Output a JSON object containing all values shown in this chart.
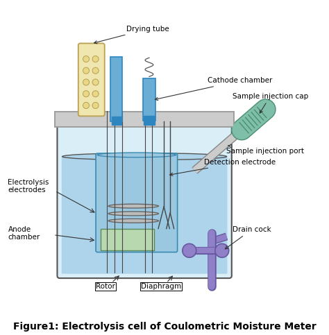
{
  "title": "Figure1: Electrolysis cell of Coulometric Moisture Meter",
  "title_fontsize": 10,
  "bg_color": "#ffffff",
  "labels": {
    "drying_tube": "Drying tube",
    "cathode_chamber": "Cathode chamber",
    "sample_injection_cap": "Sample injection cap",
    "sample_injection_port": "Sample injection port",
    "detection_electrode": "Detection electrode",
    "drain_cock": "Drain cock",
    "electrolysis_electrodes": "Electrolysis\nelectrodes",
    "anode_chamber": "Anode\nchamber",
    "rotor": "Rotor",
    "diaphragm": "Diaphragm"
  },
  "colors": {
    "vessel_outline": "#555555",
    "vessel_fill": "#daeef8",
    "liquid_fill": "#aed4eb",
    "cathode_tube_fill": "#6aaed6",
    "cathode_tube_dark": "#2e86c1",
    "drying_tube_fill": "#f0e6b0",
    "drying_tube_outline": "#b8a050",
    "lid_fill": "#cccccc",
    "lid_outline": "#999999",
    "electrode_line": "#444444",
    "inner_vessel_fill": "#9ac8e0",
    "inner_vessel_outline": "#3a8ab0",
    "electrode_disk": "#bbbbbb",
    "injection_cap_fill": "#7fbfaa",
    "injection_cap_outline": "#4a9070",
    "drain_cock_fill": "#9080c8",
    "drain_cock_outline": "#6658a0",
    "arrow_color": "#333333",
    "label_color": "#000000",
    "port_fill": "#cccccc",
    "port_outline": "#888888"
  }
}
